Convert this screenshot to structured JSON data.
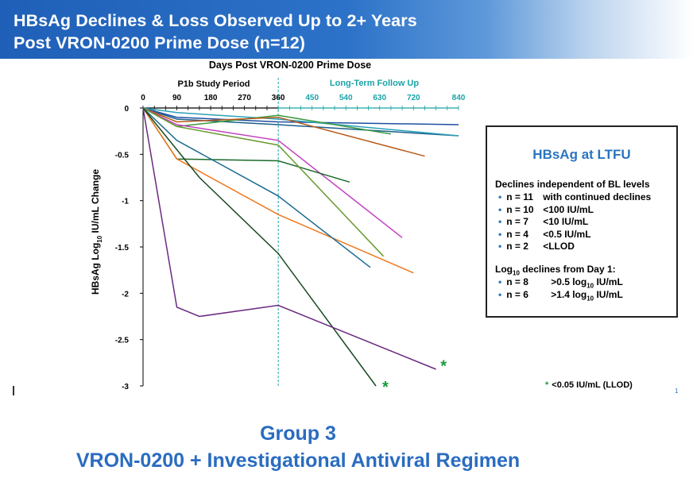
{
  "header": {
    "line1": "HBsAg Declines & Loss Observed Up to 2+ Years",
    "line2": "Post VRON-0200 Prime Dose (n=12)"
  },
  "chart_data": {
    "type": "line",
    "title": "Days Post VRON-0200 Prime Dose",
    "xlabel": "Days Post VRON-0200 Prime Dose",
    "ylabel_parts": [
      "HBsAg Log",
      "10",
      " IU/mL Change"
    ],
    "xlim": [
      0,
      840
    ],
    "ylim": [
      -3,
      0
    ],
    "x_ticks": [
      0,
      90,
      180,
      270,
      360,
      450,
      540,
      630,
      720,
      840
    ],
    "y_ticks": [
      {
        "value": 0,
        "label": "0"
      },
      {
        "value": -0.5,
        "label": "-0.5"
      },
      {
        "value": -1,
        "label": "-1"
      },
      {
        "value": -1.5,
        "label": "-1.5"
      },
      {
        "value": -2,
        "label": "-2"
      },
      {
        "value": -2.5,
        "label": "-2.5"
      },
      {
        "value": -3,
        "label": "-3"
      }
    ],
    "period_labels": {
      "study": "P1b Study Period",
      "follow_up": "Long-Term Follow Up"
    },
    "divider_x": 360,
    "colors": {
      "axis_study": "#000000",
      "axis_follow": "#1aa3a8",
      "divider": "#1aa3a8",
      "star": "#1a9a3a"
    },
    "series": [
      {
        "color": "#1e4fa0",
        "points": [
          [
            0,
            0
          ],
          [
            90,
            -0.1
          ],
          [
            360,
            -0.15
          ],
          [
            840,
            -0.18
          ]
        ]
      },
      {
        "color": "#1b5e8a",
        "points": [
          [
            0,
            0
          ],
          [
            90,
            -0.12
          ],
          [
            360,
            -0.18
          ],
          [
            840,
            -0.3
          ]
        ]
      },
      {
        "color": "#2ca0b8",
        "points": [
          [
            0,
            0
          ],
          [
            90,
            -0.05
          ],
          [
            360,
            -0.12
          ],
          [
            840,
            -0.3
          ]
        ]
      },
      {
        "color": "#3a9a40",
        "points": [
          [
            0,
            0
          ],
          [
            90,
            -0.2
          ],
          [
            360,
            -0.08
          ],
          [
            660,
            -0.28
          ]
        ]
      },
      {
        "color": "#b85a1a",
        "points": [
          [
            0,
            0
          ],
          [
            90,
            -0.15
          ],
          [
            360,
            -0.1
          ],
          [
            750,
            -0.52
          ]
        ]
      },
      {
        "color": "#c040c0",
        "points": [
          [
            0,
            0
          ],
          [
            90,
            -0.18
          ],
          [
            360,
            -0.35
          ],
          [
            690,
            -1.4
          ]
        ]
      },
      {
        "color": "#1a6a2a",
        "points": [
          [
            0,
            0
          ],
          [
            90,
            -0.55
          ],
          [
            360,
            -0.57
          ],
          [
            550,
            -0.8
          ]
        ]
      },
      {
        "color": "#6a9a30",
        "points": [
          [
            0,
            0
          ],
          [
            90,
            -0.2
          ],
          [
            360,
            -0.4
          ],
          [
            640,
            -1.6
          ]
        ]
      },
      {
        "color": "#f07820",
        "points": [
          [
            0,
            0
          ],
          [
            90,
            -0.55
          ],
          [
            360,
            -1.15
          ],
          [
            720,
            -1.78
          ]
        ]
      },
      {
        "color": "#1a6a90",
        "points": [
          [
            0,
            0
          ],
          [
            90,
            -0.35
          ],
          [
            360,
            -0.95
          ],
          [
            605,
            -1.72
          ]
        ]
      },
      {
        "color": "#1a4a20",
        "points": [
          [
            0,
            0
          ],
          [
            150,
            -0.75
          ],
          [
            360,
            -1.57
          ],
          [
            620,
            -3.0
          ]
        ]
      },
      {
        "color": "#6a2a80",
        "points": [
          [
            0,
            0
          ],
          [
            90,
            -2.15
          ],
          [
            150,
            -2.25
          ],
          [
            360,
            -2.13
          ],
          [
            780,
            -2.82
          ]
        ]
      }
    ],
    "stars": [
      {
        "x": 645,
        "y": -2.95
      },
      {
        "x": 800,
        "y": -2.72
      }
    ]
  },
  "ltfu_box": {
    "title": "HBsAg at LTFU",
    "heading1": "Declines independent of BL levels",
    "rows1": [
      {
        "n": "n = 11",
        "text": "with continued declines"
      },
      {
        "n": "n = 10",
        "text": "<100 IU/mL"
      },
      {
        "n": "n =  7",
        "text": "<10 IU/mL"
      },
      {
        "n": "n =  4",
        "text": "<0.5 IU/mL"
      },
      {
        "n": "n =  2",
        "text": "<LLOD"
      }
    ],
    "heading2_parts": [
      "Log",
      "10",
      " declines from Day 1:"
    ],
    "rows2": [
      {
        "n": "n = 8",
        "parts": [
          ">0.5 log",
          "10",
          " IU/mL"
        ]
      },
      {
        "n": "n = 6",
        "parts": [
          ">1.4 log",
          "10",
          " IU/mL"
        ]
      }
    ],
    "bullet": "•"
  },
  "footnote": {
    "star": "*",
    "text": "<0.05 IU/mL (LLOD)"
  },
  "page_number": "1",
  "footer": {
    "line1": "Group 3",
    "line2": "VRON-0200 + Investigational Antiviral Regimen"
  }
}
